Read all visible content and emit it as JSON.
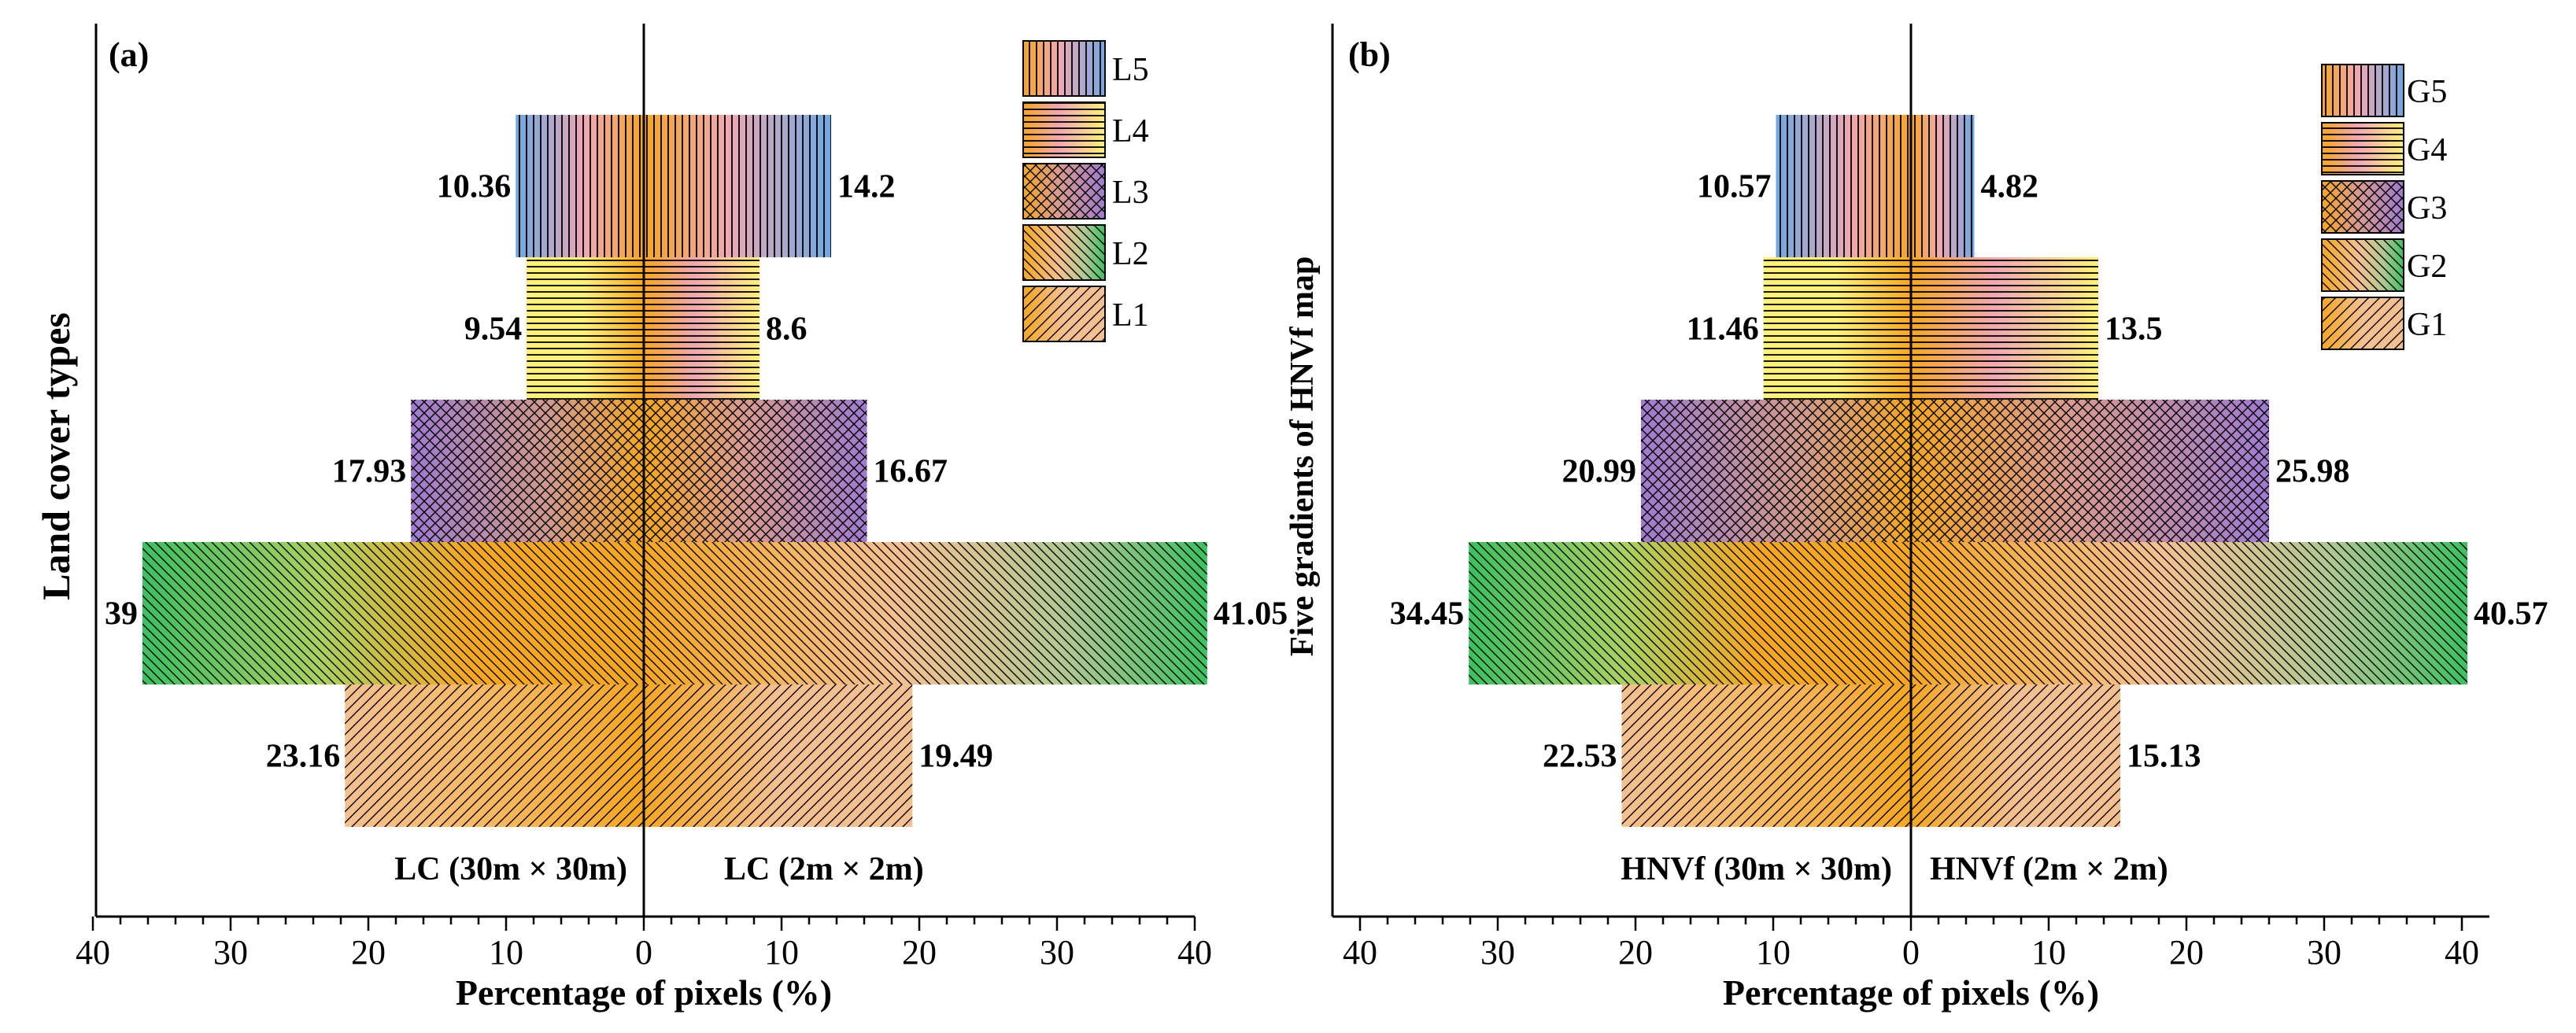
{
  "colors": {
    "blue": "#6fa8e0",
    "pink": "#f0a8b4",
    "yellow": "#fff07a",
    "orange": "#f5a623",
    "purple": "#a07ad0",
    "green": "#3cc060",
    "peach": "#f5c090",
    "hatch": "#000000"
  },
  "chart_data": [
    {
      "type": "bar",
      "orientation": "horizontal-diverging",
      "panel_label": "(a)",
      "ylabel": "Land cover types",
      "xlabel": "Percentage of pixels (%)",
      "xlim": [
        -40,
        40
      ],
      "xticks": [
        -40,
        -30,
        -20,
        -10,
        0,
        10,
        20,
        30,
        40
      ],
      "xtick_labels": [
        "40",
        "30",
        "20",
        "10",
        "0",
        "10",
        "20",
        "30",
        "40"
      ],
      "left_source": "LC (30m × 30m)",
      "right_source": "LC (2m × 2m)",
      "categories": [
        "L5",
        "L4",
        "L3",
        "L2",
        "L1"
      ],
      "series": [
        {
          "name": "LC (30m × 30m)",
          "values": [
            10.36,
            9.54,
            17.93,
            39,
            23.16
          ],
          "bar_extent": [
            9.3,
            8.5,
            16.9,
            36.4,
            21.7
          ]
        },
        {
          "name": "LC (2m × 2m)",
          "values": [
            14.2,
            8.6,
            16.67,
            41.05,
            19.49
          ],
          "bar_extent": [
            13.6,
            8.4,
            16.2,
            40.9,
            19.5
          ]
        }
      ],
      "legend": [
        "L5",
        "L4",
        "L3",
        "L2",
        "L1"
      ],
      "legend_position": "top-right"
    },
    {
      "type": "bar",
      "orientation": "horizontal-diverging",
      "panel_label": "(b)",
      "ylabel": "Five gradients of HNVf map",
      "xlabel": "Percentage of pixels (%)",
      "xlim": [
        -40,
        40
      ],
      "xticks": [
        -40,
        -30,
        -20,
        -10,
        0,
        10,
        20,
        30,
        40
      ],
      "xtick_labels": [
        "40",
        "30",
        "20",
        "10",
        "0",
        "10",
        "20",
        "30",
        "40"
      ],
      "left_source": "HNVf (30m × 30m)",
      "right_source": "HNVf (2m × 2m)",
      "categories": [
        "G5",
        "G4",
        "G3",
        "G2",
        "G1"
      ],
      "series": [
        {
          "name": "HNVf (30m × 30m)",
          "values": [
            10.57,
            11.46,
            20.99,
            34.45,
            22.53
          ],
          "bar_extent": [
            9.8,
            10.7,
            19.6,
            32.1,
            21.0
          ]
        },
        {
          "name": "HNVf (2m × 2m)",
          "values": [
            4.82,
            13.5,
            25.98,
            40.57,
            15.13
          ],
          "bar_extent": [
            4.6,
            13.6,
            26.0,
            40.4,
            15.2
          ]
        }
      ],
      "legend": [
        "G5",
        "G4",
        "G3",
        "G2",
        "G1"
      ],
      "legend_position": "top-right"
    }
  ]
}
